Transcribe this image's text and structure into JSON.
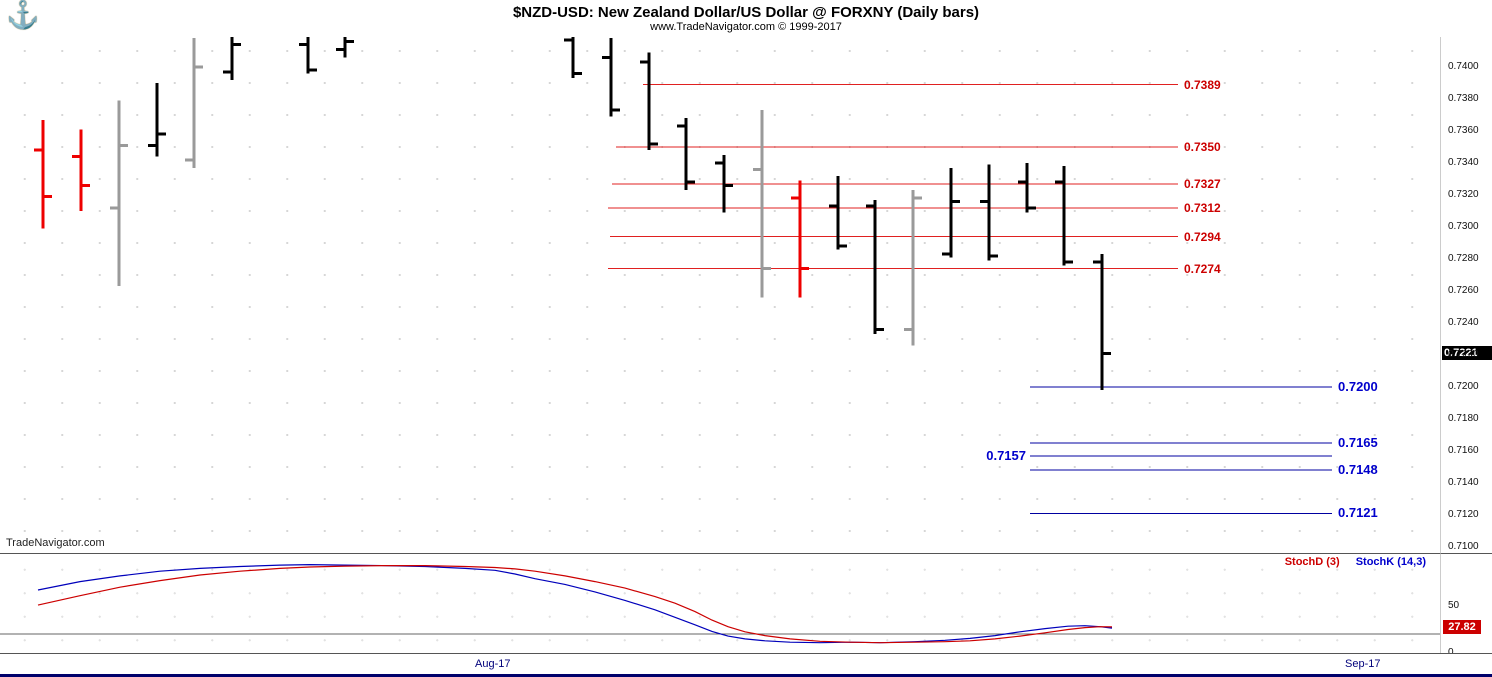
{
  "header": {
    "title": "$NZD-USD:  New Zealand Dollar/US Dollar @ FORXNY  (Daily bars)",
    "subtitle": "www.TradeNavigator.com © 1999-2017",
    "logo_icon": "anchor-icon"
  },
  "watermark": "TradeNavigator.com",
  "colors": {
    "bar_black": "#000000",
    "bar_red": "#ee0000",
    "bar_gray": "#9a9a9a",
    "resistance": "#e02020",
    "resistance_label": "#cc0000",
    "support": "#0000a0",
    "support_label": "#0000cc",
    "last_price_bg": "#000000",
    "stoch_value_bg": "#cc0000"
  },
  "chart_data": {
    "type": "ohlc-bar",
    "instrument": "$NZD-USD New Zealand Dollar/US Dollar @ FORXNY",
    "interval": "Daily bars",
    "price_axis": {
      "visible_range": [
        0.71,
        0.742
      ],
      "labels": [
        "0.7400",
        "0.7380",
        "0.7360",
        "0.7340",
        "0.7320",
        "0.7300",
        "0.7280",
        "0.7260",
        "0.7240",
        "0.7220",
        "0.7200",
        "0.7180",
        "0.7160",
        "0.7140",
        "0.7120",
        "0.7100"
      ]
    },
    "last_price": "0.7221",
    "bars": [
      {
        "x": 43,
        "o": 0.7348,
        "h": 0.7367,
        "l": 0.7299,
        "c": 0.7319,
        "color": "red"
      },
      {
        "x": 81,
        "o": 0.7344,
        "h": 0.7361,
        "l": 0.731,
        "c": 0.7326,
        "color": "red"
      },
      {
        "x": 119,
        "o": 0.7312,
        "h": 0.7379,
        "l": 0.7263,
        "c": 0.7351,
        "color": "gray"
      },
      {
        "x": 157,
        "o": 0.7351,
        "h": 0.739,
        "l": 0.7344,
        "c": 0.7358,
        "color": "black"
      },
      {
        "x": 194,
        "o": 0.7342,
        "h": 0.7418,
        "l": 0.7337,
        "c": 0.74,
        "color": "gray"
      },
      {
        "x": 232,
        "o": 0.7397,
        "h": 0.7421,
        "l": 0.7392,
        "c": 0.7414,
        "color": "black"
      },
      {
        "x": 308,
        "o": 0.7414,
        "h": 0.7421,
        "l": 0.7396,
        "c": 0.7398,
        "color": "black"
      },
      {
        "x": 345,
        "o": 0.7411,
        "h": 0.7419,
        "l": 0.7406,
        "c": 0.7416,
        "color": "black"
      },
      {
        "x": 573,
        "o": 0.7417,
        "h": 0.7421,
        "l": 0.7393,
        "c": 0.7396,
        "color": "black"
      },
      {
        "x": 611,
        "o": 0.7406,
        "h": 0.7418,
        "l": 0.7369,
        "c": 0.7373,
        "color": "black"
      },
      {
        "x": 649,
        "o": 0.7403,
        "h": 0.7409,
        "l": 0.7348,
        "c": 0.7352,
        "color": "black"
      },
      {
        "x": 686,
        "o": 0.7363,
        "h": 0.7368,
        "l": 0.7323,
        "c": 0.7328,
        "color": "black"
      },
      {
        "x": 724,
        "o": 0.734,
        "h": 0.7345,
        "l": 0.7309,
        "c": 0.7326,
        "color": "black"
      },
      {
        "x": 762,
        "o": 0.7336,
        "h": 0.7373,
        "l": 0.7256,
        "c": 0.7274,
        "color": "gray"
      },
      {
        "x": 800,
        "o": 0.7318,
        "h": 0.7329,
        "l": 0.7256,
        "c": 0.7274,
        "color": "red"
      },
      {
        "x": 838,
        "o": 0.7313,
        "h": 0.7332,
        "l": 0.7286,
        "c": 0.7288,
        "color": "black"
      },
      {
        "x": 875,
        "o": 0.7313,
        "h": 0.7317,
        "l": 0.7233,
        "c": 0.7236,
        "color": "black"
      },
      {
        "x": 913,
        "o": 0.7236,
        "h": 0.7323,
        "l": 0.7226,
        "c": 0.7318,
        "color": "gray"
      },
      {
        "x": 951,
        "o": 0.7283,
        "h": 0.7337,
        "l": 0.7281,
        "c": 0.7316,
        "color": "black"
      },
      {
        "x": 989,
        "o": 0.7316,
        "h": 0.7339,
        "l": 0.7279,
        "c": 0.7282,
        "color": "black"
      },
      {
        "x": 1027,
        "o": 0.7328,
        "h": 0.734,
        "l": 0.7309,
        "c": 0.7312,
        "color": "black"
      },
      {
        "x": 1064,
        "o": 0.7328,
        "h": 0.7338,
        "l": 0.7276,
        "c": 0.7278,
        "color": "black"
      },
      {
        "x": 1102,
        "o": 0.7278,
        "h": 0.7283,
        "l": 0.7198,
        "c": 0.7221,
        "color": "black"
      }
    ],
    "resistance_levels": [
      {
        "price": 0.7389,
        "label": "0.7389",
        "x_start": 643,
        "x_end": 1178
      },
      {
        "price": 0.735,
        "label": "0.7350",
        "x_start": 616,
        "x_end": 1178
      },
      {
        "price": 0.7327,
        "label": "0.7327",
        "x_start": 612,
        "x_end": 1178
      },
      {
        "price": 0.7312,
        "label": "0.7312",
        "x_start": 608,
        "x_end": 1178
      },
      {
        "price": 0.7294,
        "label": "0.7294",
        "x_start": 610,
        "x_end": 1178
      },
      {
        "price": 0.7274,
        "label": "0.7274",
        "x_start": 608,
        "x_end": 1178
      }
    ],
    "support_levels": [
      {
        "price": 0.72,
        "label": "0.7200",
        "x_start": 1030,
        "x_end": 1332,
        "label_side": "right"
      },
      {
        "price": 0.7165,
        "label": "0.7165",
        "x_start": 1030,
        "x_end": 1332,
        "label_side": "right"
      },
      {
        "price": 0.7157,
        "label": "0.7157",
        "x_start": 1030,
        "x_end": 1332,
        "label_side": "left"
      },
      {
        "price": 0.7148,
        "label": "0.7148",
        "x_start": 1030,
        "x_end": 1332,
        "label_side": "right"
      },
      {
        "price": 0.7121,
        "label": "0.7121",
        "x_start": 1030,
        "x_end": 1332,
        "label_side": "right"
      }
    ],
    "date_axis": {
      "labels": [
        {
          "text": "Aug-17",
          "x": 497
        },
        {
          "text": "Sep-17",
          "x": 1367
        }
      ]
    },
    "stochastic": {
      "legend": [
        {
          "label": "StochD (3)",
          "color": "#cc0000"
        },
        {
          "label": "StochK (14,3)",
          "color": "#0000cc"
        }
      ],
      "axis_labels": [
        {
          "text": "50",
          "value": 50
        },
        {
          "text": "0",
          "value": 0
        }
      ],
      "oversold_level": 20,
      "last_value": "27.82",
      "series": [
        {
          "name": "StochK (14,3)",
          "color": "#0000bb",
          "points": [
            [
              38,
              67
            ],
            [
              80,
              76
            ],
            [
              120,
              82
            ],
            [
              160,
              87
            ],
            [
              200,
              90
            ],
            [
              240,
              92
            ],
            [
              280,
              93.5
            ],
            [
              310,
              94
            ],
            [
              345,
              93.5
            ],
            [
              385,
              93
            ],
            [
              425,
              92
            ],
            [
              465,
              90
            ],
            [
              495,
              88
            ],
            [
              515,
              84
            ],
            [
              535,
              79
            ],
            [
              565,
              73
            ],
            [
              595,
              65
            ],
            [
              625,
              56
            ],
            [
              655,
              46
            ],
            [
              675,
              38
            ],
            [
              695,
              30
            ],
            [
              712,
              23
            ],
            [
              728,
              18
            ],
            [
              745,
              15
            ],
            [
              765,
              13
            ],
            [
              790,
              11.5
            ],
            [
              820,
              11
            ],
            [
              850,
              11.5
            ],
            [
              880,
              11
            ],
            [
              915,
              12
            ],
            [
              945,
              13.5
            ],
            [
              970,
              15.5
            ],
            [
              995,
              18.5
            ],
            [
              1020,
              22.5
            ],
            [
              1045,
              26
            ],
            [
              1068,
              28.5
            ],
            [
              1085,
              29
            ],
            [
              1100,
              28
            ],
            [
              1112,
              26.5
            ]
          ]
        },
        {
          "name": "StochD (3)",
          "color": "#cc0000",
          "points": [
            [
              38,
              51
            ],
            [
              80,
              61
            ],
            [
              120,
              70
            ],
            [
              160,
              77
            ],
            [
              200,
              83
            ],
            [
              240,
              87
            ],
            [
              280,
              90
            ],
            [
              310,
              91.5
            ],
            [
              345,
              92.5
            ],
            [
              385,
              93
            ],
            [
              425,
              93
            ],
            [
              465,
              92
            ],
            [
              495,
              91
            ],
            [
              515,
              89.5
            ],
            [
              535,
              87
            ],
            [
              565,
              82
            ],
            [
              595,
              76
            ],
            [
              625,
              69
            ],
            [
              655,
              60
            ],
            [
              675,
              53
            ],
            [
              695,
              44
            ],
            [
              712,
              35
            ],
            [
              728,
              28
            ],
            [
              745,
              22.5
            ],
            [
              765,
              18.5
            ],
            [
              790,
              15
            ],
            [
              820,
              12.5
            ],
            [
              850,
              11.5
            ],
            [
              880,
              11
            ],
            [
              915,
              11.5
            ],
            [
              945,
              12
            ],
            [
              970,
              13
            ],
            [
              995,
              15
            ],
            [
              1020,
              18
            ],
            [
              1045,
              21.5
            ],
            [
              1068,
              25
            ],
            [
              1085,
              27
            ],
            [
              1100,
              28
            ],
            [
              1112,
              27.8
            ]
          ]
        }
      ]
    }
  }
}
